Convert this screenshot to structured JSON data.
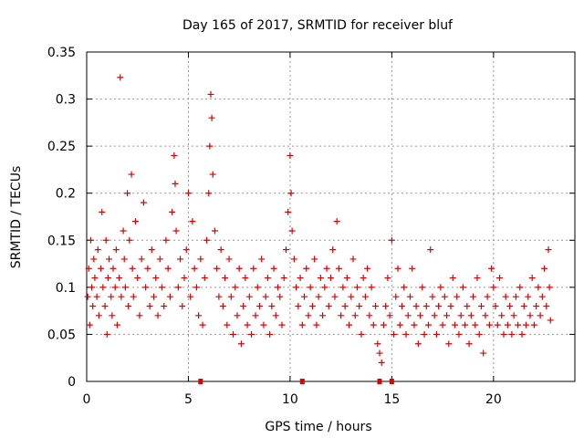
{
  "chart_data": {
    "type": "scatter",
    "title": "Day 165 of 2017, SRMTID for receiver bluf",
    "xlabel": "GPS time / hours",
    "ylabel": "SRMTID / TECUs",
    "xlim": [
      0,
      24
    ],
    "ylim": [
      0,
      0.35
    ],
    "xticks": [
      0,
      5,
      10,
      15,
      20
    ],
    "xtick_labels": [
      "0",
      "5",
      "10",
      "15",
      "20"
    ],
    "yticks": [
      0,
      0.05,
      0.1,
      0.15,
      0.2,
      0.25,
      0.3,
      0.35
    ],
    "ytick_labels": [
      "0",
      "0.05",
      "0.1",
      "0.15",
      "0.2",
      "0.25",
      "0.3",
      "0.35"
    ],
    "grid": true,
    "marker": "+",
    "color": "#e00000",
    "series": [
      {
        "name": "SRMTID",
        "points": [
          [
            0.05,
            0.09
          ],
          [
            0.1,
            0.12
          ],
          [
            0.15,
            0.06
          ],
          [
            0.2,
            0.15
          ],
          [
            0.25,
            0.1
          ],
          [
            0.3,
            0.08
          ],
          [
            0.35,
            0.13
          ],
          [
            0.4,
            0.11
          ],
          [
            0.5,
            0.09
          ],
          [
            0.55,
            0.14
          ],
          [
            0.6,
            0.07
          ],
          [
            0.7,
            0.12
          ],
          [
            0.75,
            0.18
          ],
          [
            0.8,
            0.1
          ],
          [
            0.9,
            0.08
          ],
          [
            0.95,
            0.15
          ],
          [
            1.0,
            0.05
          ],
          [
            1.05,
            0.11
          ],
          [
            1.1,
            0.13
          ],
          [
            1.2,
            0.09
          ],
          [
            1.25,
            0.07
          ],
          [
            1.3,
            0.12
          ],
          [
            1.4,
            0.1
          ],
          [
            1.45,
            0.14
          ],
          [
            1.5,
            0.06
          ],
          [
            1.6,
            0.11
          ],
          [
            1.65,
            0.323
          ],
          [
            1.7,
            0.09
          ],
          [
            1.8,
            0.16
          ],
          [
            1.85,
            0.13
          ],
          [
            1.9,
            0.1
          ],
          [
            2.0,
            0.2
          ],
          [
            2.05,
            0.08
          ],
          [
            2.1,
            0.15
          ],
          [
            2.2,
            0.22
          ],
          [
            2.25,
            0.12
          ],
          [
            2.3,
            0.09
          ],
          [
            2.4,
            0.17
          ],
          [
            2.5,
            0.11
          ],
          [
            2.6,
            0.07
          ],
          [
            2.7,
            0.13
          ],
          [
            2.8,
            0.19
          ],
          [
            2.9,
            0.1
          ],
          [
            3.0,
            0.12
          ],
          [
            3.1,
            0.08
          ],
          [
            3.2,
            0.14
          ],
          [
            3.3,
            0.09
          ],
          [
            3.4,
            0.11
          ],
          [
            3.5,
            0.07
          ],
          [
            3.6,
            0.13
          ],
          [
            3.7,
            0.1
          ],
          [
            3.8,
            0.08
          ],
          [
            3.9,
            0.15
          ],
          [
            4.0,
            0.12
          ],
          [
            4.1,
            0.09
          ],
          [
            4.2,
            0.18
          ],
          [
            4.3,
            0.24
          ],
          [
            4.35,
            0.21
          ],
          [
            4.4,
            0.16
          ],
          [
            4.5,
            0.1
          ],
          [
            4.6,
            0.13
          ],
          [
            4.7,
            0.08
          ],
          [
            4.8,
            0.11
          ],
          [
            4.9,
            0.14
          ],
          [
            5.0,
            0.2
          ],
          [
            5.1,
            0.09
          ],
          [
            5.2,
            0.17
          ],
          [
            5.3,
            0.12
          ],
          [
            5.4,
            0.1
          ],
          [
            5.5,
            0.07
          ],
          [
            5.6,
            0.13
          ],
          [
            5.7,
            0.06
          ],
          [
            5.8,
            0.11
          ],
          [
            5.9,
            0.15
          ],
          [
            6.0,
            0.2
          ],
          [
            6.05,
            0.25
          ],
          [
            6.1,
            0.305
          ],
          [
            6.15,
            0.28
          ],
          [
            6.2,
            0.22
          ],
          [
            6.3,
            0.16
          ],
          [
            6.4,
            0.12
          ],
          [
            6.5,
            0.09
          ],
          [
            6.6,
            0.14
          ],
          [
            6.7,
            0.08
          ],
          [
            6.8,
            0.11
          ],
          [
            6.9,
            0.06
          ],
          [
            7.0,
            0.13
          ],
          [
            7.1,
            0.09
          ],
          [
            7.2,
            0.05
          ],
          [
            7.3,
            0.1
          ],
          [
            7.4,
            0.07
          ],
          [
            7.5,
            0.12
          ],
          [
            7.6,
            0.04
          ],
          [
            7.7,
            0.08
          ],
          [
            7.8,
            0.11
          ],
          [
            7.9,
            0.06
          ],
          [
            8.0,
            0.09
          ],
          [
            8.1,
            0.05
          ],
          [
            8.2,
            0.12
          ],
          [
            8.3,
            0.07
          ],
          [
            8.4,
            0.1
          ],
          [
            8.5,
            0.08
          ],
          [
            8.6,
            0.13
          ],
          [
            8.7,
            0.06
          ],
          [
            8.8,
            0.09
          ],
          [
            8.9,
            0.11
          ],
          [
            9.0,
            0.05
          ],
          [
            9.1,
            0.08
          ],
          [
            9.2,
            0.12
          ],
          [
            9.3,
            0.07
          ],
          [
            9.4,
            0.1
          ],
          [
            9.5,
            0.09
          ],
          [
            9.6,
            0.06
          ],
          [
            9.7,
            0.11
          ],
          [
            9.8,
            0.14
          ],
          [
            9.9,
            0.18
          ],
          [
            10.0,
            0.24
          ],
          [
            10.05,
            0.2
          ],
          [
            10.1,
            0.16
          ],
          [
            10.2,
            0.13
          ],
          [
            10.3,
            0.1
          ],
          [
            10.4,
            0.08
          ],
          [
            10.5,
            0.11
          ],
          [
            10.6,
            0.06
          ],
          [
            10.7,
            0.09
          ],
          [
            10.8,
            0.12
          ],
          [
            10.9,
            0.07
          ],
          [
            11.0,
            0.1
          ],
          [
            11.1,
            0.08
          ],
          [
            11.2,
            0.13
          ],
          [
            11.3,
            0.06
          ],
          [
            11.4,
            0.09
          ],
          [
            11.5,
            0.11
          ],
          [
            11.6,
            0.07
          ],
          [
            11.7,
            0.1
          ],
          [
            11.8,
            0.12
          ],
          [
            11.9,
            0.08
          ],
          [
            12.0,
            0.11
          ],
          [
            12.1,
            0.14
          ],
          [
            12.2,
            0.09
          ],
          [
            12.3,
            0.17
          ],
          [
            12.4,
            0.12
          ],
          [
            12.5,
            0.07
          ],
          [
            12.6,
            0.1
          ],
          [
            12.7,
            0.08
          ],
          [
            12.8,
            0.11
          ],
          [
            12.9,
            0.06
          ],
          [
            13.0,
            0.09
          ],
          [
            13.1,
            0.13
          ],
          [
            13.2,
            0.07
          ],
          [
            13.3,
            0.1
          ],
          [
            13.4,
            0.08
          ],
          [
            13.5,
            0.05
          ],
          [
            13.6,
            0.11
          ],
          [
            13.7,
            0.09
          ],
          [
            13.8,
            0.12
          ],
          [
            13.9,
            0.07
          ],
          [
            14.0,
            0.1
          ],
          [
            14.1,
            0.06
          ],
          [
            14.2,
            0.08
          ],
          [
            14.3,
            0.04
          ],
          [
            14.4,
            0.03
          ],
          [
            14.5,
            0.02
          ],
          [
            14.6,
            0.06
          ],
          [
            14.7,
            0.08
          ],
          [
            14.8,
            0.11
          ],
          [
            14.9,
            0.07
          ],
          [
            15.0,
            0.15
          ],
          [
            15.1,
            0.05
          ],
          [
            15.2,
            0.09
          ],
          [
            15.3,
            0.12
          ],
          [
            15.4,
            0.06
          ],
          [
            15.5,
            0.08
          ],
          [
            15.6,
            0.1
          ],
          [
            15.7,
            0.05
          ],
          [
            15.8,
            0.07
          ],
          [
            15.9,
            0.09
          ],
          [
            16.0,
            0.12
          ],
          [
            16.1,
            0.06
          ],
          [
            16.2,
            0.08
          ],
          [
            16.3,
            0.04
          ],
          [
            16.4,
            0.07
          ],
          [
            16.5,
            0.1
          ],
          [
            16.6,
            0.05
          ],
          [
            16.7,
            0.08
          ],
          [
            16.8,
            0.06
          ],
          [
            16.9,
            0.14
          ],
          [
            17.0,
            0.09
          ],
          [
            17.1,
            0.07
          ],
          [
            17.2,
            0.05
          ],
          [
            17.3,
            0.08
          ],
          [
            17.4,
            0.1
          ],
          [
            17.5,
            0.06
          ],
          [
            17.6,
            0.09
          ],
          [
            17.7,
            0.07
          ],
          [
            17.8,
            0.04
          ],
          [
            17.9,
            0.08
          ],
          [
            18.0,
            0.11
          ],
          [
            18.1,
            0.06
          ],
          [
            18.2,
            0.09
          ],
          [
            18.3,
            0.05
          ],
          [
            18.4,
            0.07
          ],
          [
            18.5,
            0.1
          ],
          [
            18.6,
            0.06
          ],
          [
            18.7,
            0.08
          ],
          [
            18.8,
            0.04
          ],
          [
            18.9,
            0.07
          ],
          [
            19.0,
            0.09
          ],
          [
            19.1,
            0.06
          ],
          [
            19.2,
            0.11
          ],
          [
            19.3,
            0.05
          ],
          [
            19.4,
            0.08
          ],
          [
            19.5,
            0.03
          ],
          [
            19.6,
            0.07
          ],
          [
            19.7,
            0.09
          ],
          [
            19.8,
            0.06
          ],
          [
            19.9,
            0.12
          ],
          [
            20.0,
            0.1
          ],
          [
            20.1,
            0.08
          ],
          [
            20.2,
            0.06
          ],
          [
            20.3,
            0.11
          ],
          [
            20.4,
            0.07
          ],
          [
            20.5,
            0.05
          ],
          [
            20.6,
            0.09
          ],
          [
            20.7,
            0.06
          ],
          [
            20.8,
            0.08
          ],
          [
            20.9,
            0.05
          ],
          [
            21.0,
            0.07
          ],
          [
            21.1,
            0.09
          ],
          [
            21.2,
            0.06
          ],
          [
            21.3,
            0.1
          ],
          [
            21.4,
            0.05
          ],
          [
            21.5,
            0.08
          ],
          [
            21.6,
            0.06
          ],
          [
            21.7,
            0.09
          ],
          [
            21.8,
            0.07
          ],
          [
            21.9,
            0.11
          ],
          [
            22.0,
            0.06
          ],
          [
            22.1,
            0.08
          ],
          [
            22.2,
            0.1
          ],
          [
            22.3,
            0.07
          ],
          [
            22.4,
            0.09
          ],
          [
            22.5,
            0.12
          ],
          [
            22.6,
            0.08
          ],
          [
            22.7,
            0.14
          ],
          [
            22.75,
            0.1
          ],
          [
            22.8,
            0.065
          ]
        ]
      }
    ],
    "baseline_marks_x": [
      5.6,
      10.6,
      14.4,
      15.0
    ],
    "baseline_marks_y": 0
  }
}
